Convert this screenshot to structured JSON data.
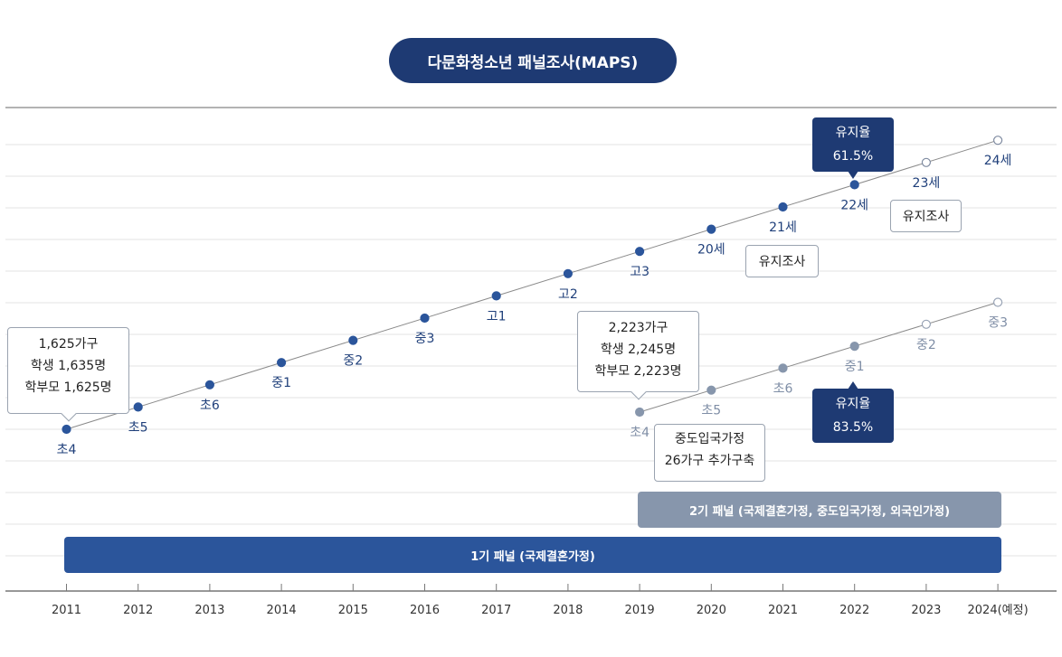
{
  "title": "다문화청소년 패널조사(MAPS)",
  "years": [
    "2011",
    "2012",
    "2013",
    "2014",
    "2015",
    "2016",
    "2017",
    "2018",
    "2019",
    "2020",
    "2021",
    "2022",
    "2023",
    "2024(예정)"
  ],
  "panel1": {
    "bar_label": "1기 패널 (국제결혼가정)",
    "points": [
      {
        "label": "초4",
        "status": "done"
      },
      {
        "label": "초5",
        "status": "done"
      },
      {
        "label": "초6",
        "status": "done"
      },
      {
        "label": "중1",
        "status": "done"
      },
      {
        "label": "중2",
        "status": "done"
      },
      {
        "label": "중3",
        "status": "done"
      },
      {
        "label": "고1",
        "status": "done"
      },
      {
        "label": "고2",
        "status": "done"
      },
      {
        "label": "고3",
        "status": "done"
      },
      {
        "label": "20세",
        "status": "done"
      },
      {
        "label": "21세",
        "status": "done"
      },
      {
        "label": "22세",
        "status": "done"
      },
      {
        "label": "23세",
        "status": "planned"
      },
      {
        "label": "24세",
        "status": "planned"
      }
    ],
    "start_callout": [
      "1,625가구",
      "학생 1,635명",
      "학부모 1,625명"
    ],
    "retention_callout": [
      "유지율",
      "61.5%"
    ],
    "maintenance_labels": [
      "유지조사",
      "유지조사"
    ]
  },
  "panel2": {
    "bar_label": "2기 패널 (국제결혼가정, 중도입국가정, 외국인가정)",
    "points": [
      {
        "label": "초4",
        "status": "done"
      },
      {
        "label": "초5",
        "status": "done"
      },
      {
        "label": "초6",
        "status": "done"
      },
      {
        "label": "중1",
        "status": "done"
      },
      {
        "label": "중2",
        "status": "planned"
      },
      {
        "label": "중3",
        "status": "planned"
      }
    ],
    "start_callout": [
      "2,223가구",
      "학생 2,245명",
      "학부모 2,223명"
    ],
    "added_callout": [
      "중도입국가정",
      "26가구 추가구축"
    ],
    "retention_callout": [
      "유지율",
      "83.5%"
    ]
  },
  "colors": {
    "navy": "#1e3a73",
    "blue": "#2b559b",
    "grey_blue": "#8796ac",
    "point_label": "#1f3f7a",
    "panel2_label": "#7f8ea6"
  }
}
